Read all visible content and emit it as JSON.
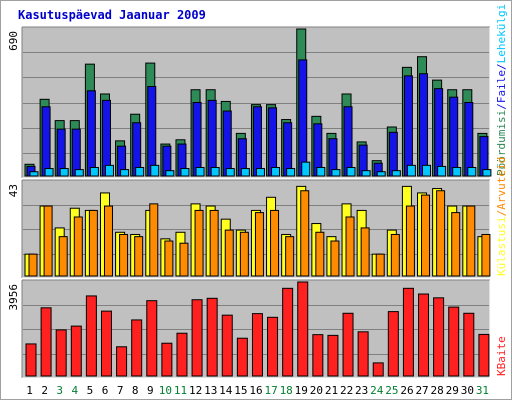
{
  "title": "Kasutuspäevad Jaanuar 2009",
  "colors": {
    "panel": "#c0c0c0",
    "grid": "#808080",
    "visits": "#2e8b57",
    "pages": "#1414e8",
    "files": "#00c8ff",
    "kbytes": "#ff2020",
    "hits": "#ff8c00",
    "hosts": "#ffff20",
    "title": "#0000cc",
    "weekend": "#007f2f",
    "weekday": "#000000"
  },
  "chart_data": [
    {
      "type": "bar",
      "name": "top",
      "ymax_label": "690",
      "ymax": 690,
      "categories": [
        "1",
        "2",
        "3",
        "4",
        "5",
        "6",
        "7",
        "8",
        "9",
        "10",
        "11",
        "12",
        "13",
        "14",
        "15",
        "16",
        "17",
        "18",
        "19",
        "20",
        "21",
        "22",
        "23",
        "24",
        "25",
        "26",
        "27",
        "28",
        "29",
        "30",
        "31"
      ],
      "legend": [
        {
          "text": "Pöördumisi",
          "color": "#2e8b57"
        },
        {
          "text": "/",
          "color": "#1414e8"
        },
        {
          "text": "Faile",
          "color": "#1414e8"
        },
        {
          "text": "/",
          "color": "#1414e8"
        },
        {
          "text": "Lehekülgi",
          "color": "#00c8ff"
        }
      ],
      "series": [
        {
          "name": "Pöördumisi",
          "color": "#2e8b57",
          "values": [
            55,
            360,
            260,
            260,
            525,
            385,
            165,
            290,
            530,
            150,
            170,
            405,
            405,
            350,
            200,
            335,
            335,
            265,
            690,
            280,
            200,
            385,
            160,
            72,
            230,
            510,
            560,
            450,
            405,
            405,
            200
          ]
        },
        {
          "name": "Faile",
          "color": "#1414e8",
          "values": [
            45,
            325,
            220,
            220,
            400,
            355,
            140,
            250,
            420,
            140,
            150,
            345,
            355,
            305,
            175,
            325,
            320,
            250,
            545,
            245,
            175,
            325,
            145,
            60,
            205,
            470,
            480,
            410,
            370,
            345,
            185
          ]
        },
        {
          "name": "Lehekülgi",
          "color": "#00c8ff",
          "values": [
            20,
            35,
            35,
            30,
            40,
            50,
            30,
            40,
            50,
            25,
            35,
            40,
            40,
            35,
            35,
            35,
            40,
            35,
            65,
            40,
            30,
            40,
            25,
            20,
            25,
            50,
            50,
            45,
            40,
            40,
            30
          ]
        }
      ]
    },
    {
      "type": "bar",
      "name": "middle",
      "ymax_label": "43",
      "ymax": 43,
      "legend": [
        {
          "text": "Külastusi",
          "color": "#ffff20"
        },
        {
          "text": "/",
          "color": "#ff8c00"
        },
        {
          "text": "Arvuteid",
          "color": "#ff8c00"
        }
      ],
      "series": [
        {
          "name": "Külastusi",
          "color": "#ffff20",
          "values": [
            10,
            32,
            22,
            31,
            30,
            38,
            20,
            19,
            30,
            17,
            20,
            33,
            32,
            26,
            21,
            30,
            36,
            19,
            41,
            24,
            18,
            33,
            30,
            10,
            21,
            41,
            38,
            40,
            32,
            32,
            18
          ]
        },
        {
          "name": "Arvuteid",
          "color": "#ff8c00",
          "values": [
            10,
            32,
            18,
            27,
            30,
            32,
            19,
            18,
            33,
            16,
            15,
            30,
            30,
            21,
            20,
            29,
            30,
            18,
            39,
            20,
            16,
            27,
            22,
            10,
            19,
            32,
            37,
            39,
            29,
            32,
            19
          ]
        }
      ]
    },
    {
      "type": "bar",
      "name": "bottom",
      "ymax_label": "3956",
      "ymax": 3956,
      "legend": [
        {
          "text": "KBaite",
          "color": "#ff2020"
        }
      ],
      "series": [
        {
          "name": "KBaite",
          "color": "#ff2020",
          "values": [
            1350,
            2870,
            1940,
            2100,
            3370,
            2730,
            1230,
            2360,
            3170,
            1380,
            1800,
            3210,
            3270,
            2560,
            1590,
            2625,
            2470,
            3690,
            3956,
            1740,
            1710,
            2640,
            1860,
            552,
            2710,
            3690,
            3450,
            3290,
            2900,
            2640,
            1750
          ]
        }
      ]
    }
  ],
  "weekend_days": [
    "3",
    "4",
    "10",
    "11",
    "17",
    "18",
    "24",
    "25",
    "31"
  ]
}
